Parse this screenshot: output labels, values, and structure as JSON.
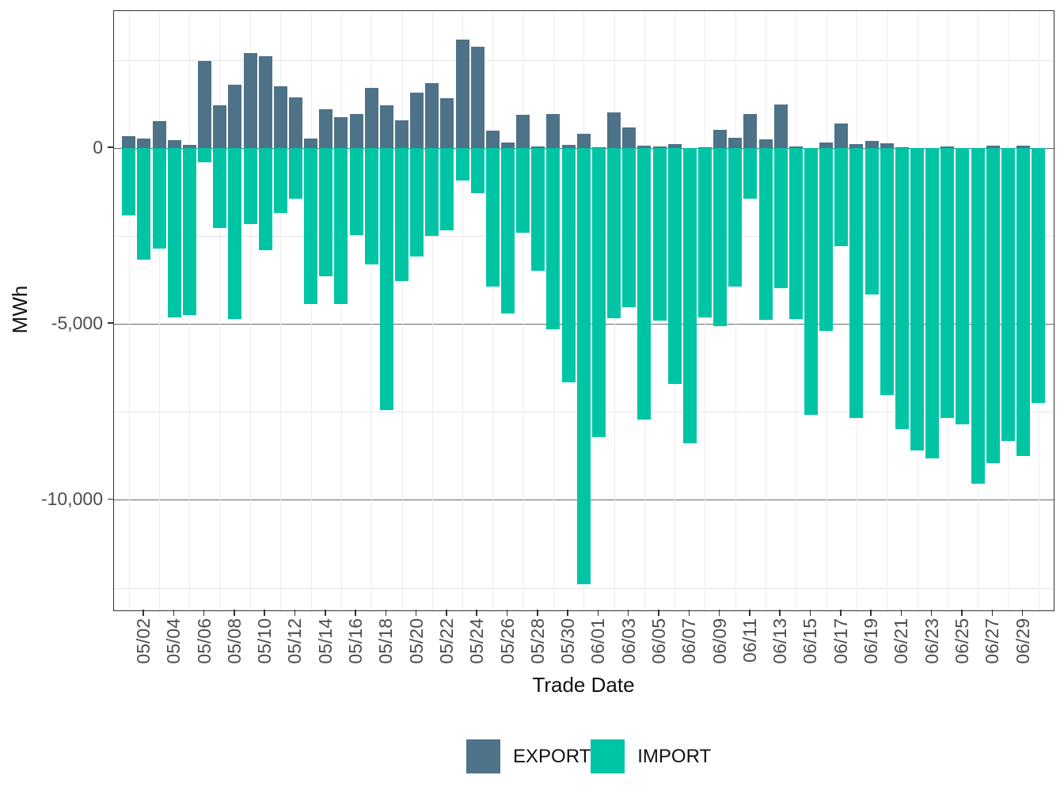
{
  "chart_data": {
    "type": "bar",
    "title": "",
    "xlabel": "Trade Date",
    "ylabel": "MWh",
    "ylim": [
      -13140,
      3890
    ],
    "grid": true,
    "legend_position": "bottom",
    "y_major_ticks": [
      0,
      -5000,
      -10000
    ],
    "y_major_labels": [
      "0",
      "-5,000",
      "-10,000"
    ],
    "y_minor_ticks": [
      2500,
      -2500,
      -7500,
      -12500
    ],
    "categories": [
      "05/01",
      "05/02",
      "05/03",
      "05/04",
      "05/05",
      "05/06",
      "05/07",
      "05/08",
      "05/09",
      "05/10",
      "05/11",
      "05/12",
      "05/13",
      "05/14",
      "05/15",
      "05/16",
      "05/17",
      "05/18",
      "05/19",
      "05/20",
      "05/21",
      "05/22",
      "05/23",
      "05/24",
      "05/25",
      "05/26",
      "05/27",
      "05/28",
      "05/29",
      "05/30",
      "05/31",
      "06/01",
      "06/02",
      "06/03",
      "06/04",
      "06/05",
      "06/06",
      "06/07",
      "06/08",
      "06/09",
      "06/10",
      "06/11",
      "06/12",
      "06/13",
      "06/14",
      "06/15",
      "06/16",
      "06/17",
      "06/18",
      "06/19",
      "06/20",
      "06/21",
      "06/22",
      "06/23",
      "06/24",
      "06/25",
      "06/26",
      "06/27",
      "06/28",
      "06/29",
      "06/30"
    ],
    "series": [
      {
        "name": "EXPORT",
        "color": "#4E7287",
        "values": [
          330,
          270,
          765,
          230,
          90,
          2475,
          1215,
          1805,
          2700,
          2610,
          1760,
          1445,
          265,
          1095,
          875,
          975,
          1705,
          1210,
          780,
          1580,
          1850,
          1410,
          3075,
          2885,
          500,
          155,
          950,
          50,
          975,
          95,
          400,
          15,
          1015,
          585,
          75,
          45,
          105,
          10,
          20,
          510,
          300,
          960,
          240,
          1240,
          45,
          10,
          155,
          705,
          120,
          200,
          140,
          20,
          5,
          5,
          45,
          5,
          10,
          70,
          5,
          60,
          10
        ]
      },
      {
        "name": "IMPORT",
        "color": "#00C5A5",
        "values": [
          -1905,
          -3165,
          -2865,
          -4815,
          -4755,
          -410,
          -2280,
          -4865,
          -2155,
          -2895,
          -1840,
          -1450,
          -4440,
          -3650,
          -4440,
          -2475,
          -3300,
          -7445,
          -3780,
          -3075,
          -2505,
          -2340,
          -915,
          -1275,
          -3930,
          -4705,
          -2415,
          -3480,
          -5155,
          -6655,
          -12405,
          -8205,
          -4830,
          -4530,
          -7720,
          -4895,
          -6695,
          -8390,
          -4820,
          -5060,
          -3935,
          -1440,
          -4875,
          -3990,
          -4860,
          -7580,
          -5190,
          -2790,
          -7670,
          -4155,
          -7030,
          -7990,
          -8585,
          -8820,
          -7670,
          -7860,
          -9530,
          -8945,
          -8320,
          -8750,
          -7235
        ]
      }
    ]
  }
}
